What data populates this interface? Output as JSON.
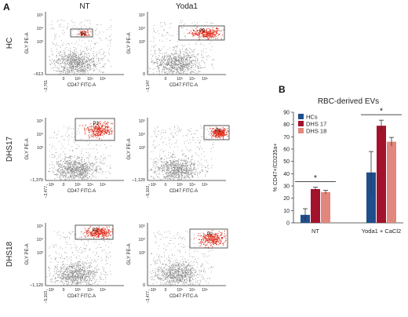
{
  "panel_labels": {
    "a": "A",
    "b": "B"
  },
  "flow": {
    "column_titles": [
      "NT",
      "Yoda1"
    ],
    "row_labels": [
      "HC",
      "DHS17",
      "DHS18"
    ],
    "gate_label": "P2",
    "x_axis_label": "CD47 FITC-A",
    "y_axis_label": "GLY PE-A",
    "y_ticks_top": [
      "10⁵",
      "10⁴",
      "10³"
    ],
    "x_ticks_tail": [
      "10³",
      "10⁴",
      "10⁵"
    ],
    "x_ticks_start": [
      "−2,761",
      "−3,147",
      "−3,477",
      "−5,103",
      "−5,103",
      "−3,477"
    ],
    "y_ticks_bottom": [
      "−613",
      "0",
      "−1,370",
      "−1,120",
      "−1,120",
      "0"
    ],
    "tick_zero": "0",
    "tick_minus_1e3": "−10³",
    "colors": {
      "population": "#8a8a8a",
      "gated": "#e0301e",
      "gate_box": "#333333"
    }
  },
  "chart_data": {
    "type": "bar",
    "title": "RBC-derived EVs",
    "ylabel": "% CD47+/CD235a+",
    "ylim": [
      0,
      90
    ],
    "yticks": [
      "0",
      "10",
      "20",
      "30",
      "40",
      "50",
      "60",
      "70",
      "80",
      "90"
    ],
    "categories": [
      "NT",
      "Yoda1 + CaCl2"
    ],
    "series": [
      {
        "name": "HCs",
        "color": "#1f4e8c",
        "values": [
          6.5,
          41
        ],
        "errors": [
          5,
          17
        ]
      },
      {
        "name": "DHS 17",
        "color": "#a3122c",
        "values": [
          27.5,
          79
        ],
        "errors": [
          1.5,
          4.5
        ]
      },
      {
        "name": "DHS 18",
        "color": "#e2877d",
        "values": [
          25,
          66
        ],
        "errors": [
          1.5,
          3.5
        ]
      }
    ],
    "significance": [
      "*",
      "*"
    ],
    "legend_position": "top-left"
  }
}
